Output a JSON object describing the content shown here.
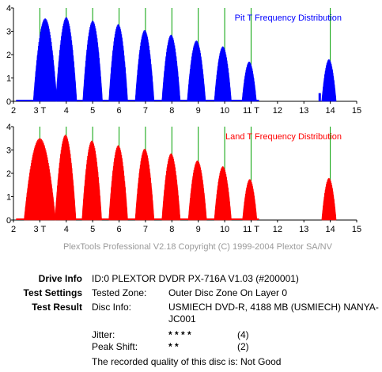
{
  "charts_common": {
    "x_ticks": [
      "2",
      "3 T",
      "4",
      "5",
      "6",
      "7",
      "8",
      "9",
      "10",
      "11 T",
      "12",
      "13",
      "14",
      "15"
    ],
    "y_ticks": [
      "0",
      "1",
      "2",
      "3",
      "4"
    ],
    "gridline_color": "#00a000"
  },
  "chart_data": [
    {
      "type": "area",
      "title": "Pit T Frequency Distribution",
      "color": "#0000ff",
      "xlim": [
        2,
        15
      ],
      "ylim": [
        0,
        4
      ],
      "peaks": [
        {
          "center": 3.2,
          "height": 3.55,
          "width": 0.9
        },
        {
          "center": 4.0,
          "height": 3.6,
          "width": 0.8
        },
        {
          "center": 5.0,
          "height": 3.45,
          "width": 0.75
        },
        {
          "center": 5.97,
          "height": 3.3,
          "width": 0.72
        },
        {
          "center": 6.97,
          "height": 3.05,
          "width": 0.72
        },
        {
          "center": 7.97,
          "height": 2.85,
          "width": 0.7
        },
        {
          "center": 8.93,
          "height": 2.6,
          "width": 0.7
        },
        {
          "center": 9.93,
          "height": 2.35,
          "width": 0.65
        },
        {
          "center": 10.93,
          "height": 1.7,
          "width": 0.55
        },
        {
          "center": 13.95,
          "height": 1.8,
          "width": 0.55
        }
      ],
      "markers": [
        13.6
      ]
    },
    {
      "type": "area",
      "title": "Land T Frequency Distribution",
      "color": "#ff0000",
      "xlim": [
        2,
        15
      ],
      "ylim": [
        0,
        4
      ],
      "peaks": [
        {
          "center": 3.0,
          "height": 3.5,
          "width": 1.2
        },
        {
          "center": 3.97,
          "height": 3.65,
          "width": 0.8
        },
        {
          "center": 4.97,
          "height": 3.4,
          "width": 0.75
        },
        {
          "center": 5.97,
          "height": 3.2,
          "width": 0.72
        },
        {
          "center": 6.97,
          "height": 3.05,
          "width": 0.72
        },
        {
          "center": 7.97,
          "height": 2.85,
          "width": 0.7
        },
        {
          "center": 8.97,
          "height": 2.55,
          "width": 0.7
        },
        {
          "center": 9.93,
          "height": 2.3,
          "width": 0.65
        },
        {
          "center": 10.95,
          "height": 1.75,
          "width": 0.55
        },
        {
          "center": 13.95,
          "height": 1.8,
          "width": 0.55
        }
      ],
      "markers": []
    }
  ],
  "copyright": "PlexTools Professional V2.18 Copyright (C) 1999-2004 Plextor SA/NV",
  "info": {
    "drive_info_label": "Drive Info",
    "drive_info_value": "ID:0 PLEXTOR DVDR PX-716A V1.03 (#200001)",
    "test_settings_label": "Test Settings",
    "tested_zone_label": "Tested Zone:",
    "tested_zone_value": "Outer Disc Zone On Layer 0",
    "test_result_label": "Test Result",
    "disc_info_label": "Disc Info:",
    "disc_info_value_1": "USMIECH DVD-R, 4188 MB (USMIECH) NANYA-",
    "disc_info_value_2": "JC001",
    "jitter_label": "Jitter:",
    "jitter_stars": "* * * *",
    "jitter_score": "(4)",
    "peak_shift_label": "Peak Shift:",
    "peak_shift_stars": "* *",
    "peak_shift_score": "(2)",
    "quality_text": "The recorded quality of this disc is: Not Good"
  }
}
